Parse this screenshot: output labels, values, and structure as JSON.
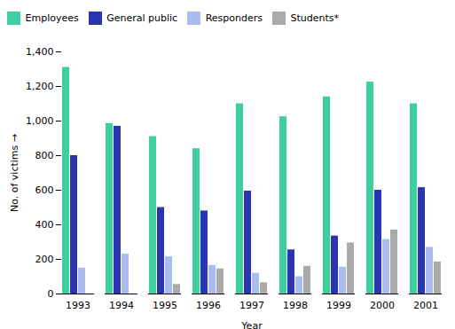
{
  "chart_data": {
    "type": "bar",
    "xlabel": "Year",
    "ylabel": "No. of victims",
    "categories": [
      "1993",
      "1994",
      "1995",
      "1996",
      "1997",
      "1998",
      "1999",
      "2000",
      "2001"
    ],
    "series": [
      {
        "name": "Employees",
        "color": "#3ECFA0",
        "values": [
          1310,
          985,
          910,
          840,
          1100,
          1025,
          1140,
          1225,
          1100
        ]
      },
      {
        "name": "General public",
        "color": "#2B35AF",
        "values": [
          800,
          970,
          500,
          480,
          595,
          255,
          335,
          600,
          615
        ]
      },
      {
        "name": "Responders",
        "color": "#AABBEE",
        "values": [
          150,
          230,
          215,
          165,
          120,
          100,
          155,
          315,
          270
        ]
      },
      {
        "name": "Students*",
        "color": "#AAAAAA",
        "values": [
          0,
          0,
          55,
          145,
          65,
          160,
          295,
          370,
          185
        ]
      }
    ],
    "ylim": [
      0,
      1400
    ],
    "yticks": [
      0,
      200,
      400,
      600,
      800,
      1000,
      1200,
      1400
    ],
    "legend": "upper left",
    "grid": false
  }
}
